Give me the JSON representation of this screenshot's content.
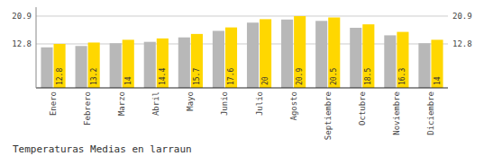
{
  "chart_data": {
    "type": "bar",
    "title": "Temperaturas Medias en larraun",
    "categories": [
      "Enero",
      "Febrero",
      "Marzo",
      "Abril",
      "Mayo",
      "Junio",
      "Julio",
      "Agosto",
      "Septiembre",
      "Octubre",
      "Noviembre",
      "Diciembre"
    ],
    "series": [
      {
        "color": "#B8B8B8",
        "values": [
          11.8,
          12.2,
          13.0,
          13.4,
          14.7,
          16.6,
          19.0,
          19.9,
          19.5,
          17.5,
          15.3,
          13.0
        ]
      },
      {
        "color": "#FFD700",
        "values": [
          12.8,
          13.2,
          14.0,
          14.4,
          15.7,
          17.6,
          20.0,
          20.9,
          20.5,
          18.5,
          16.3,
          14.0
        ],
        "data_labels": true
      }
    ],
    "ylim": [
      0.0,
      23.5
    ],
    "yticks": [
      12.8,
      20.9
    ],
    "grid": true
  }
}
